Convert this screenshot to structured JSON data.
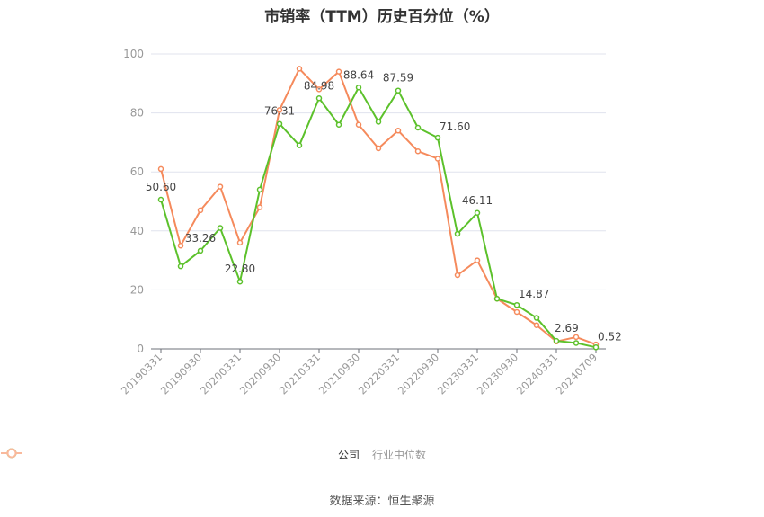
{
  "title": "市销率（TTM）历史百分位（%）",
  "source": "数据来源：恒生聚源",
  "legend": [
    {
      "label": "公司",
      "color": "#5cc12b"
    },
    {
      "label": "行业中位数",
      "color": "#f58a5c"
    }
  ],
  "chart_data": {
    "type": "line",
    "title": "市销率（TTM）历史百分位（%）",
    "xlabel": "",
    "ylabel": "",
    "ylim": [
      0,
      100
    ],
    "yticks": [
      0,
      20,
      40,
      60,
      80,
      100
    ],
    "grid": true,
    "legend_position": "bottom",
    "x_tick_labels": [
      "20190331",
      "20190930",
      "20200331",
      "20200930",
      "20210331",
      "20210930",
      "20220331",
      "20220930",
      "20230331",
      "20230930",
      "20240331",
      "20240709"
    ],
    "x_tick_indices": [
      0,
      2,
      4,
      6,
      8,
      10,
      12,
      14,
      16,
      18,
      20,
      22
    ],
    "series": [
      {
        "name": "公司",
        "color": "#5cc12b",
        "values": [
          50.6,
          28,
          33.26,
          41,
          22.8,
          54,
          76.31,
          69,
          84.98,
          76,
          88.64,
          77,
          87.59,
          75,
          71.6,
          39,
          46.11,
          17,
          14.87,
          10.5,
          2.69,
          2,
          0.52
        ],
        "labeled_indices": [
          0,
          2,
          4,
          6,
          8,
          10,
          12,
          14,
          16,
          18,
          20,
          22
        ]
      },
      {
        "name": "行业中位数",
        "color": "#f58a5c",
        "values": [
          61,
          35,
          47,
          55,
          36,
          48,
          81,
          95,
          88,
          94,
          76,
          68,
          74,
          67,
          64.5,
          25,
          30,
          17,
          12.5,
          8,
          2.5,
          4,
          1.5
        ]
      }
    ]
  }
}
